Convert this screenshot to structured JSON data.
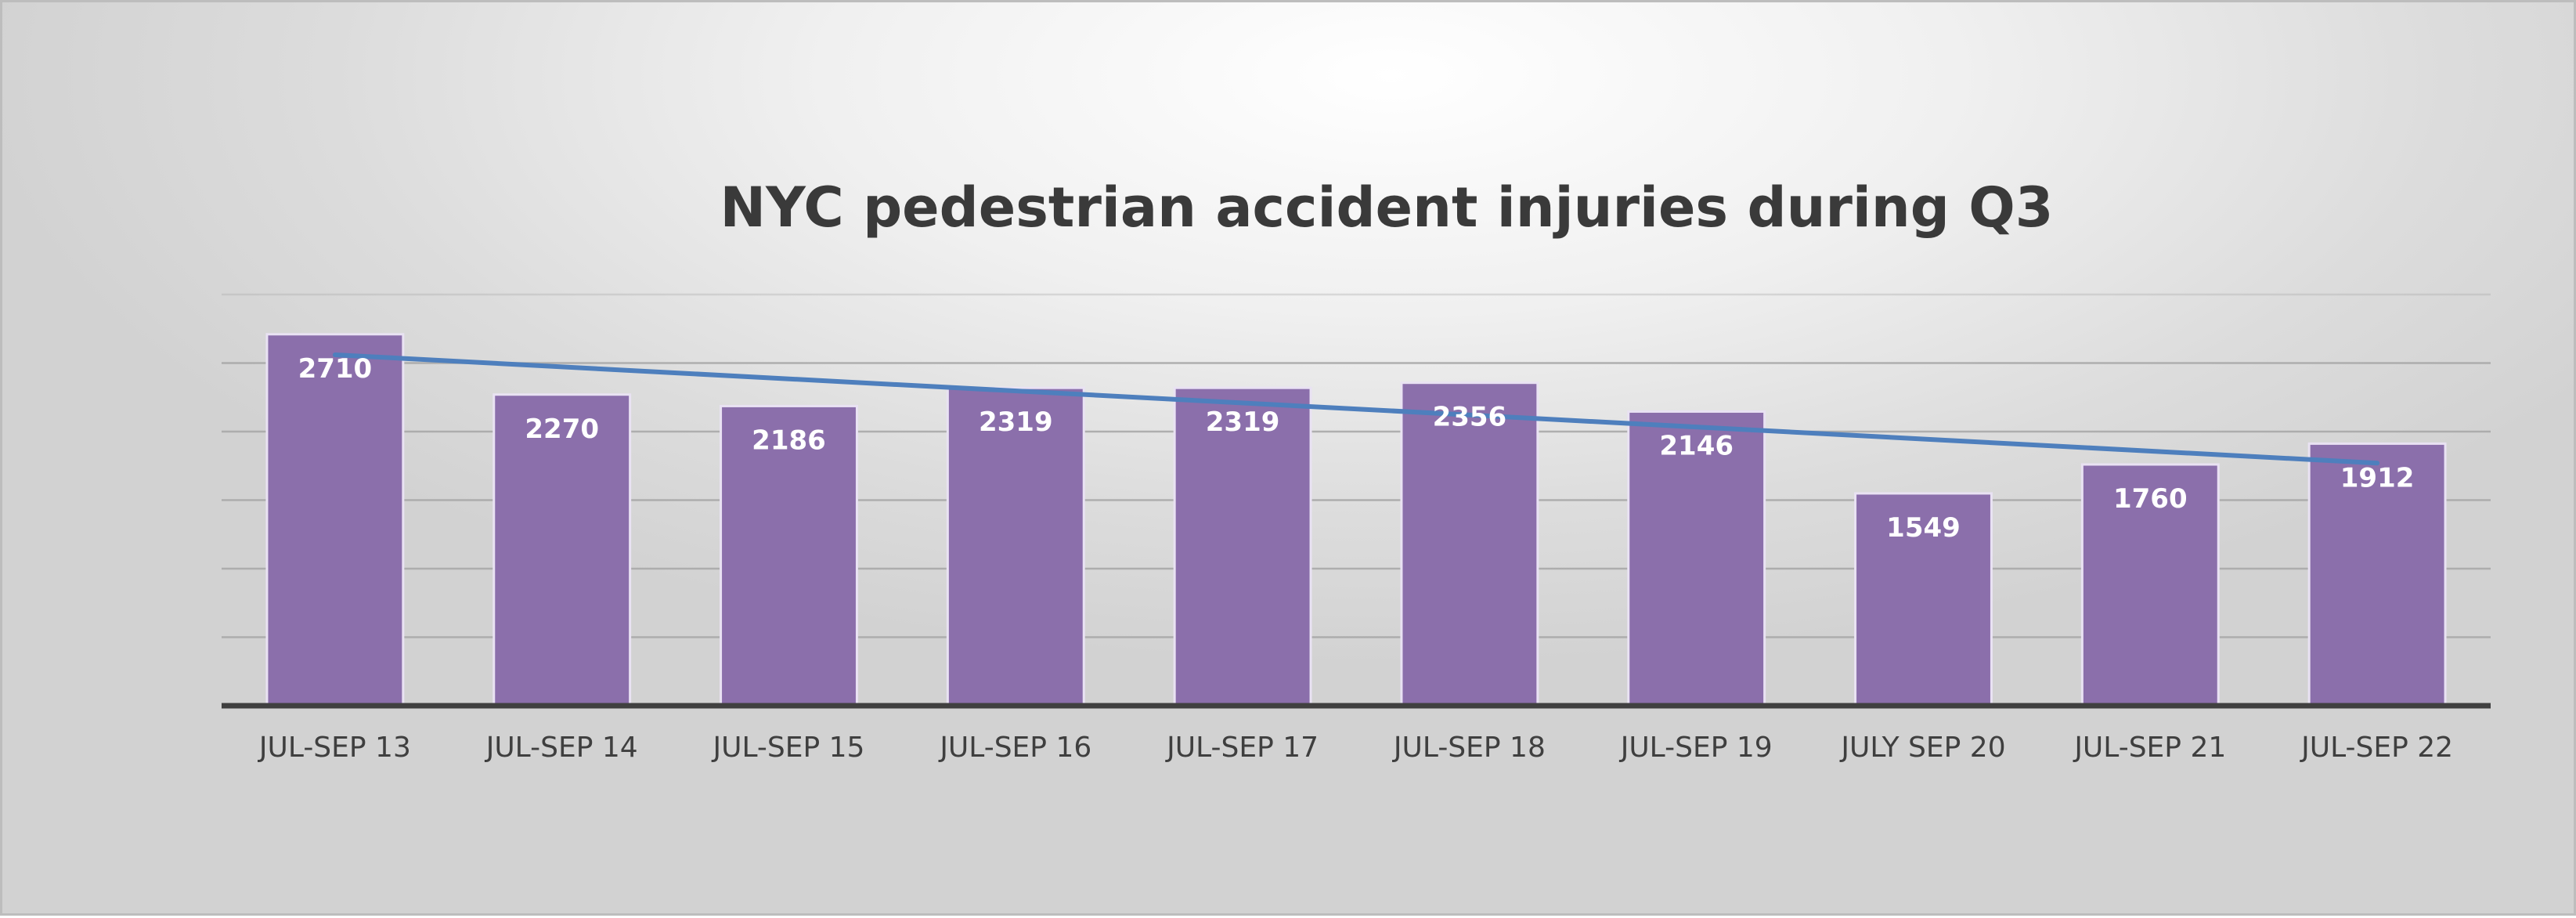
{
  "chart_data": {
    "type": "bar",
    "title": "NYC pedestrian accident injuries during Q3",
    "categories": [
      "JUL-SEP 13",
      "JUL-SEP 14",
      "JUL-SEP 15",
      "JUL-SEP 16",
      "JUL-SEP 17",
      "JUL-SEP 18",
      "JUL-SEP 19",
      "JULY SEP 20",
      "JUL-SEP 21",
      "JUL-SEP 22"
    ],
    "values": [
      2710,
      2270,
      2186,
      2319,
      2319,
      2356,
      2146,
      1549,
      1760,
      1912
    ],
    "data_labels": [
      "2710",
      "2270",
      "2186",
      "2319",
      "2319",
      "2356",
      "2146",
      "1549",
      "1760",
      "1912"
    ],
    "ylim": [
      0,
      3000
    ],
    "ygrid_step": 500,
    "grid": true,
    "y_tick_labels_shown": false,
    "trendline": {
      "type": "linear",
      "start": 2560,
      "end": 1770
    },
    "colors": {
      "bar": "#8b6fab",
      "trendline": "#4e7fbd",
      "grid": "#a9a9a9",
      "axis": "#404040"
    }
  }
}
